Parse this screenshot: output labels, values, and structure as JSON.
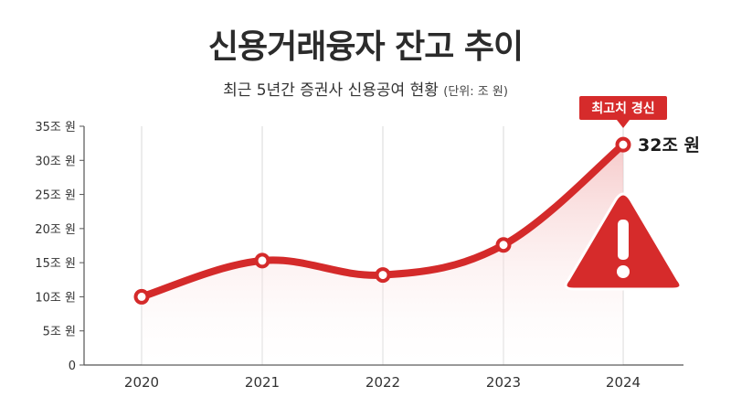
{
  "header": {
    "title": "신용거래융자 잔고 추이",
    "subtitle": "최근 5년간 증권사 신용공여 현황",
    "unit_note": "(단위: 조 원)"
  },
  "chart_data": {
    "type": "line",
    "title": "신용거래융자 잔고 추이",
    "x": [
      "2020",
      "2021",
      "2022",
      "2023",
      "2024"
    ],
    "series": [
      {
        "values": [
          10,
          15.3,
          13.2,
          17.6,
          32.3
        ]
      }
    ],
    "ylim": [
      0,
      35
    ],
    "y_ticks": [
      {
        "value": 0,
        "label": "0"
      },
      {
        "value": 5,
        "label": "5조 원"
      },
      {
        "value": 10,
        "label": "10조 원"
      },
      {
        "value": 15,
        "label": "15조 원"
      },
      {
        "value": 20,
        "label": "20조 원"
      },
      {
        "value": 25,
        "label": "25조 원"
      },
      {
        "value": 30,
        "label": "30조 원"
      },
      {
        "value": 35,
        "label": "35조 원"
      }
    ],
    "grid": "vertical",
    "annotations": {
      "last_value_label": "32조 원",
      "badge": "최고치 경신",
      "warning": "!"
    },
    "colors": {
      "line": "#d42a2a",
      "fill": "#f7d6d6",
      "badge": "#d62b2b",
      "warning": "#d62b2b"
    }
  }
}
